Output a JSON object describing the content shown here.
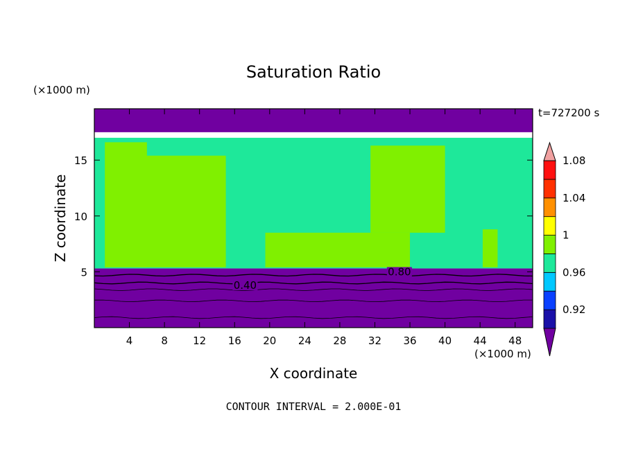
{
  "chart_data": {
    "type": "heatmap",
    "title": "Saturation Ratio",
    "time_label": "t=727200 s",
    "xlabel": "X coordinate",
    "ylabel": "Z coordinate",
    "x_unit": "(×1000 m)",
    "y_unit": "(×1000 m)",
    "xlim": [
      0,
      50
    ],
    "ylim": [
      0,
      19.6
    ],
    "x_ticks": [
      4,
      8,
      12,
      16,
      20,
      24,
      28,
      32,
      36,
      40,
      44,
      48
    ],
    "y_ticks": [
      5,
      10,
      15
    ],
    "footer": "CONTOUR INTERVAL = 2.000E-01",
    "colorbar": {
      "colors": [
        "#7000a0",
        "#1a10a8",
        "#0a40ff",
        "#00c8ff",
        "#1ee89a",
        "#80f000",
        "#ffff00",
        "#ff9000",
        "#ff3000",
        "#ff1010",
        "#f0a0a0"
      ],
      "tick_labels": [
        "0.92",
        "0.96",
        "1",
        "1.04",
        "1.08"
      ]
    },
    "contour_labels": [
      {
        "text": "0.40",
        "x": 17.2,
        "z": 3.6
      },
      {
        "text": "0.80",
        "x": 34.8,
        "z": 4.8
      }
    ],
    "field_regions": [
      {
        "level_index": 0,
        "z_range": [
          0,
          5.3
        ],
        "x_range": [
          0,
          50
        ]
      },
      {
        "level_index": 4,
        "z_range": [
          5.3,
          17
        ],
        "x_range": [
          0,
          50
        ]
      },
      {
        "level_index": 5,
        "z_range": [
          5.4,
          16.6
        ],
        "x_range": [
          1.2,
          6
        ]
      },
      {
        "level_index": 5,
        "z_range": [
          5.4,
          15.4
        ],
        "x_range": [
          5,
          15
        ]
      },
      {
        "level_index": 5,
        "z_range": [
          5.4,
          8.5
        ],
        "x_range": [
          19.5,
          36
        ]
      },
      {
        "level_index": 5,
        "z_range": [
          8.5,
          16.3
        ],
        "x_range": [
          31.5,
          40
        ]
      },
      {
        "level_index": 5,
        "z_range": [
          5.4,
          8.8
        ],
        "x_range": [
          44.3,
          46
        ]
      },
      {
        "level_index": 0,
        "z_range": [
          17.5,
          19.6
        ],
        "x_range": [
          0,
          50
        ]
      }
    ]
  }
}
